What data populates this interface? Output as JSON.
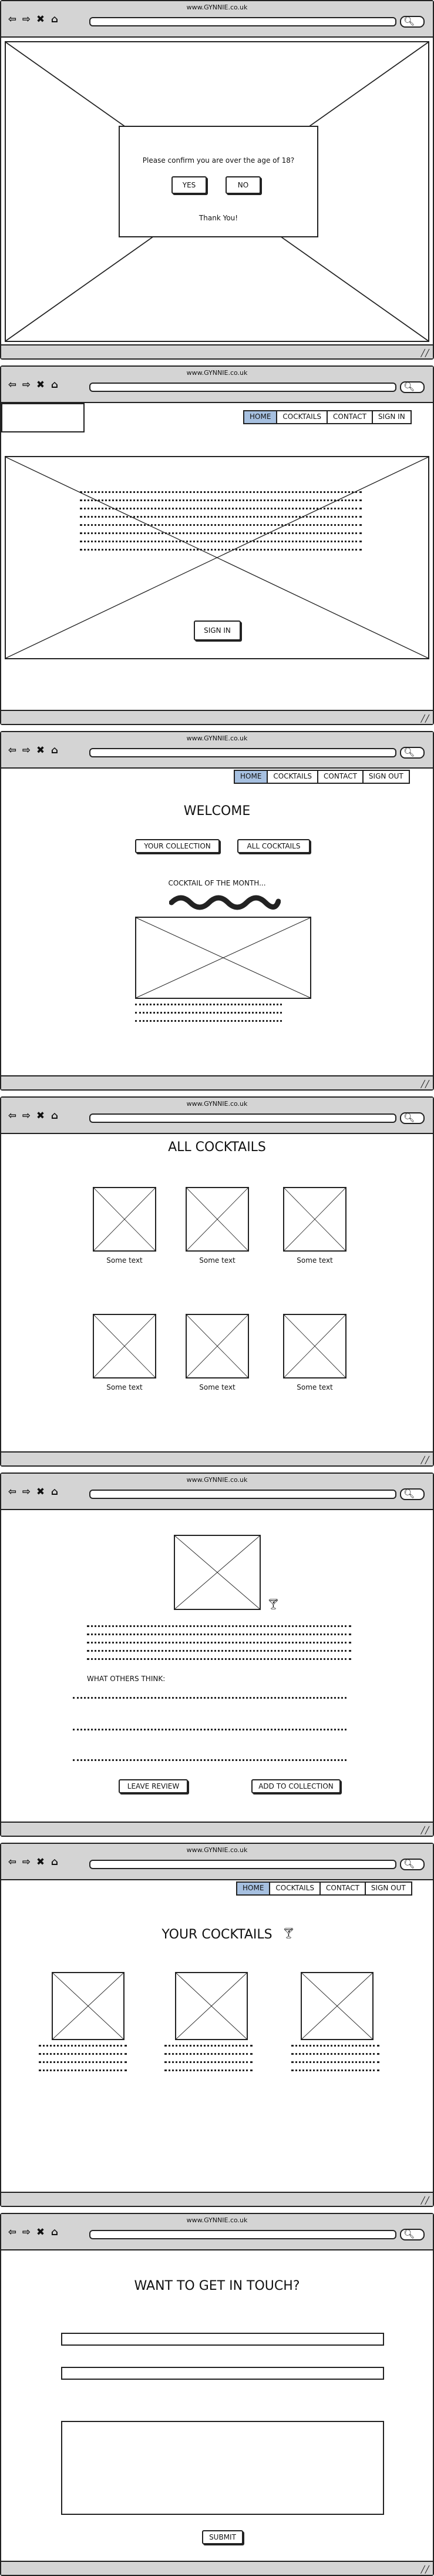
{
  "browser": {
    "url": "www.GYNNIE.co.uk",
    "nav_icons": [
      "back-icon",
      "forward-icon",
      "close-icon",
      "home-icon"
    ],
    "search_icon": "search-icon"
  },
  "nav": {
    "tabs_signin": [
      "HOME",
      "COCKTAILS",
      "CONTACT",
      "SIGN IN"
    ],
    "tabs_signout": [
      "HOME",
      "COCKTAILS",
      "CONTACT",
      "SIGN OUT"
    ],
    "active_color": "#a6c0e0"
  },
  "age_gate": {
    "question": "Please confirm you are over the age of 18?",
    "yes_label": "YES",
    "no_label": "NO",
    "thanks": "Thank You!"
  },
  "signin_screen": {
    "button_label": "SIGN IN"
  },
  "home": {
    "title": "WELCOME",
    "your_collection_label": "YOUR COLLECTION",
    "all_cocktails_label": "ALL COCKTAILS",
    "cocktail_of_month": "COCKTAIL OF THE MONTH..."
  },
  "all_cocktails": {
    "title": "ALL COCKTAILS",
    "captions": [
      "Some text",
      "Some text",
      "Some text",
      "Some text",
      "Some text",
      "Some text"
    ]
  },
  "cocktail_detail": {
    "what_others_think": "WHAT OTHERS THINK:",
    "leave_review_label": "LEAVE REVIEW",
    "add_to_collection_label": "ADD TO COLLECTION",
    "glass_icon": "cocktail-glass-icon"
  },
  "your_cocktails": {
    "title": "YOUR COCKTAILS",
    "glass_icon": "cocktail-glass-icon"
  },
  "contact": {
    "title": "WANT TO GET IN TOUCH?",
    "submit_label": "SUBMIT"
  }
}
